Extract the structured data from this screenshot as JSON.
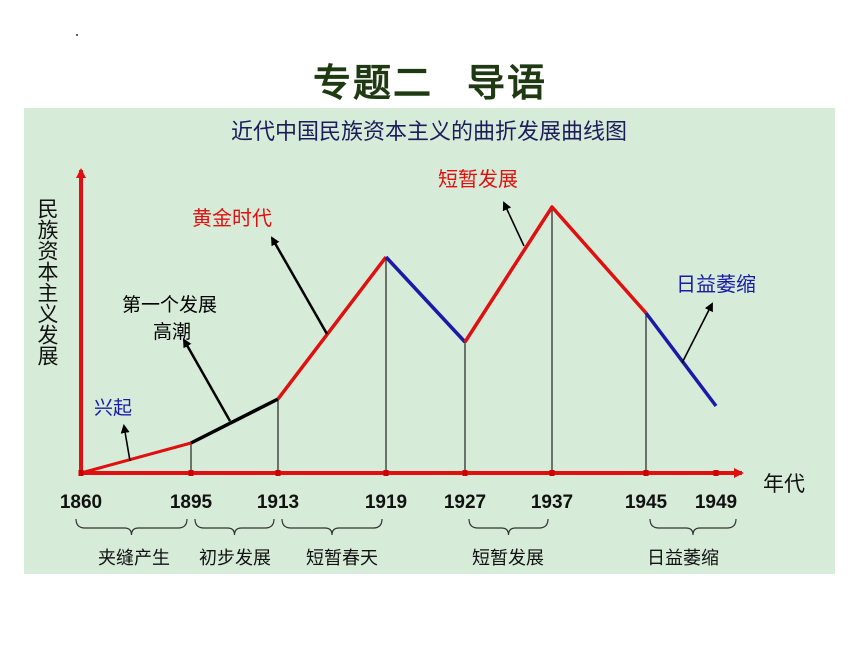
{
  "page_title": {
    "part1": "专题二",
    "part2": "导语"
  },
  "chart_data": {
    "type": "line",
    "title": "近代中国民族资本主义的曲折发展曲线图",
    "ylabel": "民族资本主义发展",
    "xlabel": "年代",
    "x": [
      1860,
      1895,
      1913,
      1919,
      1927,
      1937,
      1945,
      1949
    ],
    "x_tick_labels": [
      "1860",
      "1895",
      "1913",
      "1919",
      "1927",
      "1937",
      "1945",
      "1949"
    ],
    "series": [
      {
        "x": 1860,
        "y": 0
      },
      {
        "x": 1895,
        "y": 30
      },
      {
        "x": 1913,
        "y": 74
      },
      {
        "x": 1919,
        "y": 216
      },
      {
        "x": 1927,
        "y": 131
      },
      {
        "x": 1937,
        "y": 266
      },
      {
        "x": 1945,
        "y": 160
      },
      {
        "x": 1949,
        "y": 67
      }
    ],
    "segments": [
      {
        "from": 1860,
        "to": 1895,
        "color": "#e01010"
      },
      {
        "from": 1895,
        "to": 1913,
        "color": "#000000"
      },
      {
        "from": 1913,
        "to": 1919,
        "color": "#e01010"
      },
      {
        "from": 1919,
        "to": 1927,
        "color": "#1a1aa6"
      },
      {
        "from": 1927,
        "to": 1945,
        "color": "#e01010"
      },
      {
        "from": 1945,
        "to": 1949,
        "color": "#1a1aa6"
      }
    ],
    "periods": [
      "夹缝产生",
      "初步发展",
      "短暂春天",
      "短暂发展",
      "日益萎缩"
    ],
    "annotations": [
      {
        "text": "兴起",
        "color": "#1a1aa6"
      },
      {
        "text": "第一个发展",
        "color": "#000000"
      },
      {
        "text": "高潮",
        "color": "#000000"
      },
      {
        "text": "黄金时代",
        "color": "#e01010"
      },
      {
        "text": "短暂发展",
        "color": "#e01010"
      },
      {
        "text": "日益萎缩",
        "color": "#1a1aa6"
      }
    ],
    "grid": false,
    "colors": {
      "axis": "#e01010",
      "background": "#d6ecd9"
    }
  }
}
